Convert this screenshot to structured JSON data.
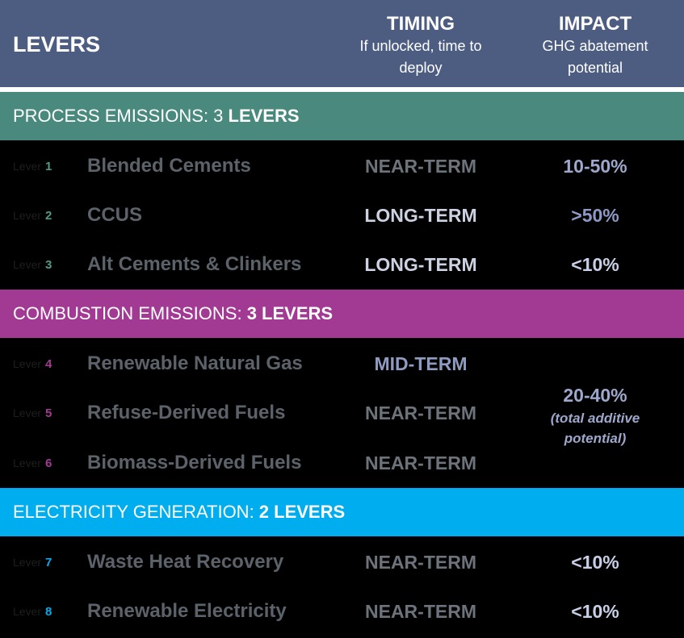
{
  "header": {
    "levers": "LEVERS",
    "timing_title": "TIMING",
    "timing_sub1": "If unlocked, time to",
    "timing_sub2": "deploy",
    "impact_title": "IMPACT",
    "impact_sub1": "GHG abatement",
    "impact_sub2": "potential"
  },
  "sections": [
    {
      "label": "PROCESS EMISSIONS: 3 ",
      "bold": "LEVERS",
      "color": "#4a8a7e"
    },
    {
      "label": "COMBUSTION EMISSIONS: ",
      "bold": "3 LEVERS",
      "color": "#a23a93"
    },
    {
      "label": "ELECTRICITY GENERATION: ",
      "bold": "2 LEVERS",
      "color": "#00adee"
    }
  ],
  "lever_word": "Lever",
  "levers": [
    {
      "num": "1",
      "name": "Blended Cements",
      "timing": "NEAR-TERM",
      "impact": "10-50%"
    },
    {
      "num": "2",
      "name": "CCUS",
      "timing": "LONG-TERM",
      "impact": ">50%"
    },
    {
      "num": "3",
      "name": "Alt Cements & Clinkers",
      "timing": "LONG-TERM",
      "impact": "<10%"
    },
    {
      "num": "4",
      "name": "Renewable Natural Gas",
      "timing": "MID-TERM",
      "impact": ""
    },
    {
      "num": "5",
      "name": "Refuse-Derived Fuels",
      "timing": "NEAR-TERM",
      "impact": ""
    },
    {
      "num": "6",
      "name": "Biomass-Derived Fuels",
      "timing": "NEAR-TERM",
      "impact": ""
    },
    {
      "num": "7",
      "name": "Waste Heat Recovery",
      "timing": "NEAR-TERM",
      "impact": "<10%"
    },
    {
      "num": "8",
      "name": "Renewable Electricity",
      "timing": "NEAR-TERM",
      "impact": "<10%"
    }
  ],
  "combustion_impact": {
    "value": "20-40%",
    "note1": "(total additive",
    "note2": "potential)"
  }
}
